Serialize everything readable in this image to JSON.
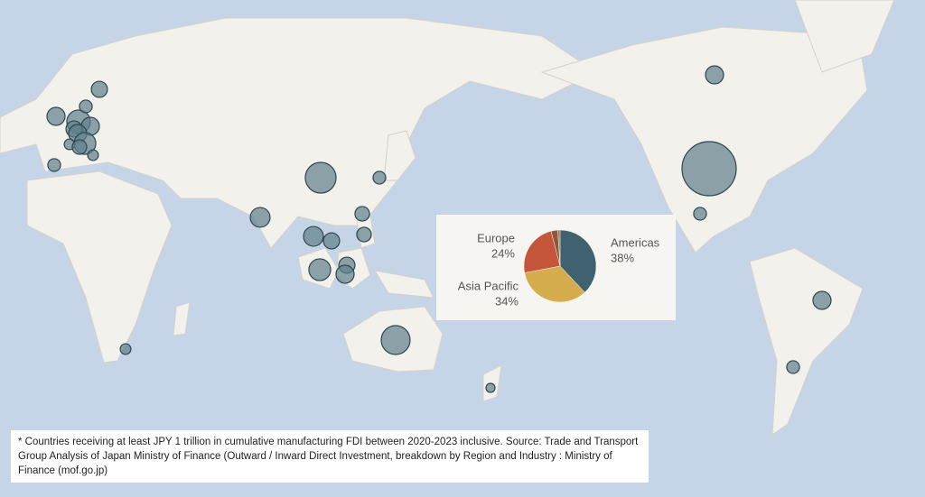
{
  "map": {
    "bubbles": [
      {
        "size": 4
      },
      {
        "size": 36
      },
      {
        "size": 2
      },
      {
        "size": 4
      },
      {
        "size": 2
      },
      {
        "size": 11.6
      },
      {
        "size": 2
      },
      {
        "size": 4.8
      },
      {
        "size": 4.8
      },
      {
        "size": 3.2
      },
      {
        "size": 2.6
      },
      {
        "size": 2.6
      },
      {
        "size": 3.2
      },
      {
        "size": 5.8
      },
      {
        "size": 4
      },
      {
        "size": 10.2
      },
      {
        "size": 1
      },
      {
        "size": 1.4
      },
      {
        "size": 2
      },
      {
        "size": 4
      },
      {
        "size": 3.2
      },
      {
        "size": 6.8
      },
      {
        "size": 4
      },
      {
        "size": 3.2
      },
      {
        "size": 4
      },
      {
        "size": 5.8
      },
      {
        "size": 1.4
      },
      {
        "size": 1.4
      },
      {
        "size": 2
      },
      {
        "size": 2.6
      }
    ]
  },
  "chart_data": {
    "type": "pie",
    "categories": [
      "Americas",
      "Asia Pacific",
      "Europe",
      null,
      null
    ],
    "values": [
      38,
      34,
      24,
      3,
      1
    ],
    "value_labels": [
      "38%",
      "34%",
      "24%",
      null,
      null
    ],
    "colors": [
      "#3f6170",
      "#d6ad4e",
      "#c5553b",
      "#8a5a3c",
      "#a37a52"
    ]
  },
  "footnote": "* Countries receiving at least JPY 1 trillion in cumulative manufacturing FDI between 2020-2023 inclusive. Source: Trade and Transport Group Analysis of Japan Ministry of Finance (Outward / Inward Direct Investment, breakdown by Region and Industry : Ministry of Finance (mof.go.jp)"
}
